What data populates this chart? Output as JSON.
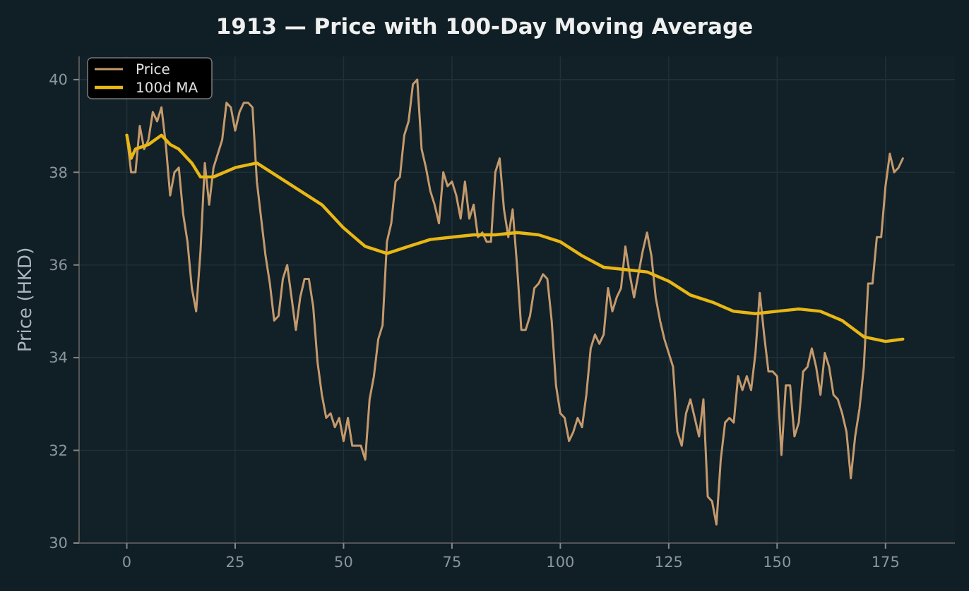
{
  "chart_data": {
    "type": "line",
    "title": "1913 — Price with 100-Day Moving Average",
    "ylabel": "Price (HKD)",
    "xlim": [
      -11,
      191
    ],
    "xticks": [
      0,
      25,
      50,
      75,
      100,
      125,
      150,
      175
    ],
    "ylim": [
      30,
      40.5
    ],
    "yticks": [
      30,
      32,
      34,
      36,
      38,
      40
    ],
    "grid": true,
    "legend": "top left",
    "line_style": "solid",
    "marker": "none",
    "series": [
      {
        "name": "Price",
        "color": "#c49a6c",
        "x": [
          0,
          1,
          2,
          3,
          4,
          5,
          6,
          7,
          8,
          9,
          10,
          11,
          12,
          13,
          14,
          15,
          16,
          17,
          18,
          19,
          20,
          21,
          22,
          23,
          24,
          25,
          26,
          27,
          28,
          29,
          30,
          31,
          32,
          33,
          34,
          35,
          36,
          37,
          38,
          39,
          40,
          41,
          42,
          43,
          44,
          45,
          46,
          47,
          48,
          49,
          50,
          51,
          52,
          53,
          54,
          55,
          56,
          57,
          58,
          59,
          60,
          61,
          62,
          63,
          64,
          65,
          66,
          67,
          68,
          69,
          70,
          71,
          72,
          73,
          74,
          75,
          76,
          77,
          78,
          79,
          80,
          81,
          82,
          83,
          84,
          85,
          86,
          87,
          88,
          89,
          90,
          91,
          92,
          93,
          94,
          95,
          96,
          97,
          98,
          99,
          100,
          101,
          102,
          103,
          104,
          105,
          106,
          107,
          108,
          109,
          110,
          111,
          112,
          113,
          114,
          115,
          116,
          117,
          118,
          119,
          120,
          121,
          122,
          123,
          124,
          125,
          126,
          127,
          128,
          129,
          130,
          131,
          132,
          133,
          134,
          135,
          136,
          137,
          138,
          139,
          140,
          141,
          142,
          143,
          144,
          145,
          146,
          147,
          148,
          149,
          150,
          151,
          152,
          153,
          154,
          155,
          156,
          157,
          158,
          159,
          160,
          161,
          162,
          163,
          164,
          165,
          166,
          167,
          168,
          169,
          170,
          171,
          172,
          173,
          174,
          175,
          176,
          177,
          178,
          179
        ],
        "values": [
          38.8,
          38.0,
          38.0,
          39.0,
          38.5,
          38.7,
          39.3,
          39.1,
          39.4,
          38.6,
          37.5,
          38.0,
          38.1,
          37.1,
          36.5,
          35.5,
          35.0,
          36.3,
          38.2,
          37.3,
          38.1,
          38.4,
          38.7,
          39.5,
          39.4,
          38.9,
          39.3,
          39.5,
          39.5,
          39.4,
          37.8,
          37.0,
          36.2,
          35.6,
          34.8,
          34.9,
          35.7,
          36.0,
          35.3,
          34.6,
          35.3,
          35.7,
          35.7,
          35.1,
          33.9,
          33.2,
          32.7,
          32.8,
          32.5,
          32.7,
          32.2,
          32.7,
          32.1,
          32.1,
          32.1,
          31.8,
          33.1,
          33.6,
          34.4,
          34.7,
          36.5,
          36.9,
          37.8,
          37.9,
          38.8,
          39.1,
          39.9,
          40.0,
          38.5,
          38.1,
          37.6,
          37.3,
          36.9,
          38.0,
          37.7,
          37.8,
          37.5,
          37.0,
          37.8,
          37.0,
          37.3,
          36.6,
          36.7,
          36.5,
          36.5,
          38.0,
          38.3,
          37.2,
          36.6,
          37.2,
          36.0,
          34.6,
          34.6,
          34.9,
          35.5,
          35.6,
          35.8,
          35.7,
          34.8,
          33.4,
          32.8,
          32.7,
          32.2,
          32.4,
          32.7,
          32.5,
          33.2,
          34.2,
          34.5,
          34.3,
          34.5,
          35.5,
          35.0,
          35.3,
          35.5,
          36.4,
          35.8,
          35.3,
          35.8,
          36.3,
          36.7,
          36.2,
          35.3,
          34.8,
          34.4,
          34.1,
          33.8,
          32.4,
          32.1,
          32.8,
          33.1,
          32.7,
          32.3,
          33.1,
          31.0,
          30.9,
          30.4,
          31.8,
          32.6,
          32.7,
          32.6,
          33.6,
          33.3,
          33.6,
          33.3,
          34.1,
          35.4,
          34.5,
          33.7,
          33.7,
          33.6,
          31.9,
          33.4,
          33.4,
          32.3,
          32.6,
          33.7,
          33.8,
          34.2,
          33.8,
          33.2,
          34.1,
          33.8,
          33.2,
          33.1,
          32.8,
          32.4,
          31.4,
          32.3,
          32.9,
          33.8,
          35.6,
          35.6,
          36.6,
          36.6,
          37.7,
          38.4,
          38.0,
          38.1,
          38.3
        ]
      },
      {
        "name": "100d MA",
        "color": "#e8b714",
        "x": [
          0,
          1,
          2,
          5,
          8,
          10,
          12,
          15,
          17,
          20,
          25,
          30,
          35,
          40,
          45,
          50,
          55,
          60,
          65,
          70,
          75,
          80,
          85,
          90,
          95,
          100,
          105,
          110,
          115,
          120,
          125,
          130,
          135,
          140,
          145,
          150,
          155,
          160,
          165,
          170,
          175,
          179
        ],
        "values": [
          38.8,
          38.3,
          38.5,
          38.6,
          38.8,
          38.6,
          38.5,
          38.2,
          37.9,
          37.9,
          38.1,
          38.2,
          37.9,
          37.6,
          37.3,
          36.8,
          36.4,
          36.25,
          36.4,
          36.55,
          36.6,
          36.65,
          36.65,
          36.7,
          36.65,
          36.5,
          36.2,
          35.95,
          35.9,
          35.85,
          35.65,
          35.35,
          35.2,
          35.0,
          34.95,
          35.0,
          35.05,
          35.0,
          34.8,
          34.45,
          34.35,
          34.4
        ]
      }
    ]
  }
}
